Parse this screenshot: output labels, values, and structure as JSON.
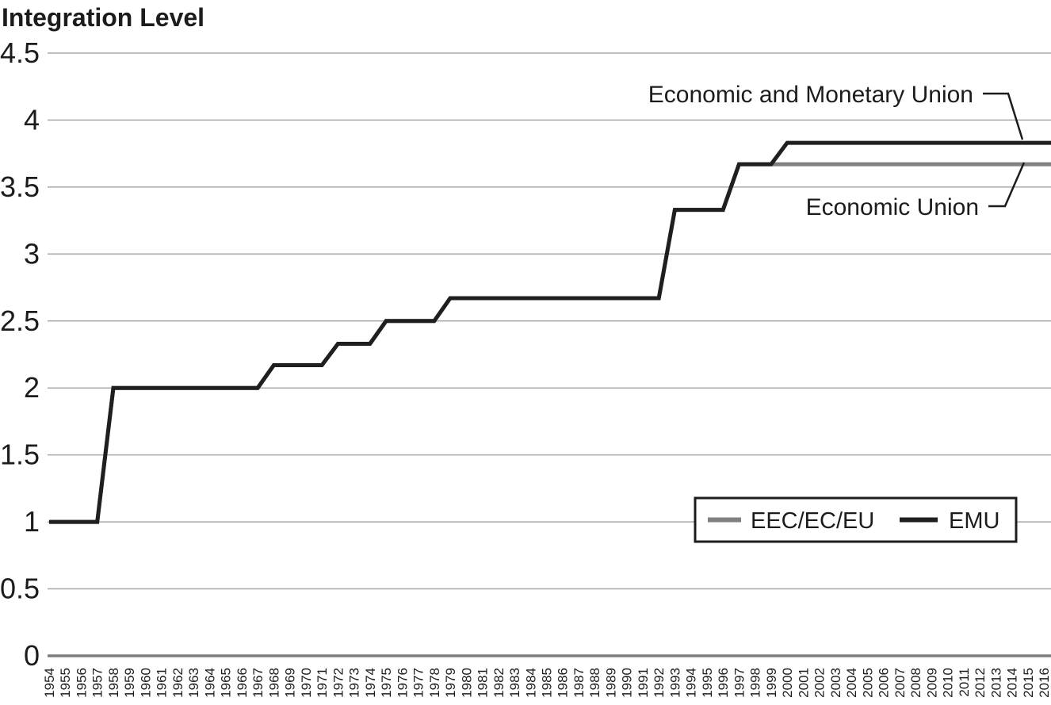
{
  "chart_data": {
    "type": "line",
    "title": "Integration Level",
    "x": [
      1954,
      1955,
      1956,
      1957,
      1958,
      1959,
      1960,
      1961,
      1962,
      1963,
      1964,
      1965,
      1966,
      1967,
      1968,
      1969,
      1970,
      1971,
      1972,
      1973,
      1974,
      1975,
      1976,
      1977,
      1978,
      1979,
      1980,
      1981,
      1982,
      1983,
      1984,
      1985,
      1986,
      1987,
      1988,
      1989,
      1990,
      1991,
      1992,
      1993,
      1994,
      1995,
      1996,
      1997,
      1998,
      1999,
      2000,
      2001,
      2002,
      2003,
      2004,
      2005,
      2006,
      2007,
      2008,
      2009,
      2010,
      2011,
      2012,
      2013,
      2014,
      2015,
      2016
    ],
    "series": [
      {
        "name": "EEC/EC/EU",
        "color": "#808080",
        "values": [
          1,
          1,
          1,
          1,
          2,
          2,
          2,
          2,
          2,
          2,
          2,
          2,
          2,
          2,
          2.17,
          2.17,
          2.17,
          2.17,
          2.33,
          2.33,
          2.33,
          2.5,
          2.5,
          2.5,
          2.5,
          2.67,
          2.67,
          2.67,
          2.67,
          2.67,
          2.67,
          2.67,
          2.67,
          2.67,
          2.67,
          2.67,
          2.67,
          2.67,
          2.67,
          3.33,
          3.33,
          3.33,
          3.33,
          3.67,
          3.67,
          3.67,
          3.67,
          3.67,
          3.67,
          3.67,
          3.67,
          3.67,
          3.67,
          3.67,
          3.67,
          3.67,
          3.67,
          3.67,
          3.67,
          3.67,
          3.67,
          3.67,
          3.67
        ]
      },
      {
        "name": "EMU",
        "color": "#1f1f1f",
        "values": [
          1,
          1,
          1,
          1,
          2,
          2,
          2,
          2,
          2,
          2,
          2,
          2,
          2,
          2,
          2.17,
          2.17,
          2.17,
          2.17,
          2.33,
          2.33,
          2.33,
          2.5,
          2.5,
          2.5,
          2.5,
          2.67,
          2.67,
          2.67,
          2.67,
          2.67,
          2.67,
          2.67,
          2.67,
          2.67,
          2.67,
          2.67,
          2.67,
          2.67,
          2.67,
          3.33,
          3.33,
          3.33,
          3.33,
          3.67,
          3.67,
          3.67,
          3.83,
          3.83,
          3.83,
          3.83,
          3.83,
          3.83,
          3.83,
          3.83,
          3.83,
          3.83,
          3.83,
          3.83,
          3.83,
          3.83,
          3.83,
          3.83,
          3.83
        ]
      }
    ],
    "ylim": [
      0,
      4.5
    ],
    "yticks": [
      0,
      0.5,
      1,
      1.5,
      2,
      2.5,
      3,
      3.5,
      4,
      4.5
    ],
    "ytick_labels": [
      "0",
      "0.5",
      "1",
      "1.5",
      "2",
      "2.5",
      "3",
      "3.5",
      "4",
      "4.5"
    ],
    "xlabel": "",
    "ylabel": "",
    "grid": "horizontal-only",
    "legend": {
      "position": "inside-lower-right",
      "entries": [
        "EEC/EC/EU",
        "EMU"
      ]
    },
    "annotations": [
      {
        "text": "Economic and Monetary Union",
        "series": "EMU",
        "value": 3.83
      },
      {
        "text": "Economic Union",
        "series": "EEC/EC/EU",
        "value": 3.67
      }
    ]
  },
  "colors": {
    "background": "#ffffff",
    "gridline": "#a8a8a8",
    "zero_axis": "#7d7d7d",
    "text": "#1c1c1c",
    "legend_border": "#1c1c1c",
    "callout": "#1c1c1c"
  }
}
